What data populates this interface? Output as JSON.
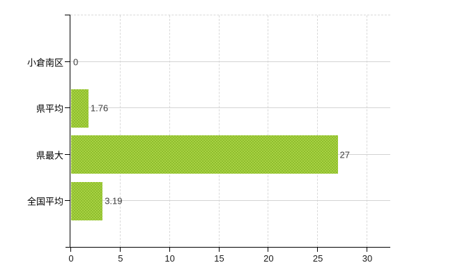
{
  "chart": {
    "background": "#ffffff",
    "bar_color": "#9cc636",
    "bar_texture_light": "#a7d243",
    "bar_texture_dark": "#8fbd2e",
    "axis_color": "#000000",
    "grid_vertical_color": "#d9d9d9",
    "grid_horizontal_color": "#d3d3d3",
    "value_label_color": "#3d3d3d",
    "tick_label_color": "#1a1a1a"
  },
  "chart_data": {
    "type": "bar",
    "orientation": "horizontal",
    "title": "",
    "xlabel": "",
    "ylabel": "",
    "categories": [
      "小倉南区",
      "県平均",
      "県最大",
      "全国平均"
    ],
    "values": [
      0,
      1.76,
      27,
      3.19
    ],
    "value_labels": [
      "0",
      "1.76",
      "27",
      "3.19"
    ],
    "x_ticks": [
      0,
      5,
      10,
      15,
      20,
      25,
      30
    ],
    "x_tick_labels": [
      "0",
      "5",
      "10",
      "15",
      "20",
      "25",
      "30"
    ],
    "xlim": [
      0,
      32.4
    ],
    "grid": "vertical-dashed-at-x-ticks, horizontal-solid-at-category-centers, dashed-top-border",
    "legend": "none"
  }
}
